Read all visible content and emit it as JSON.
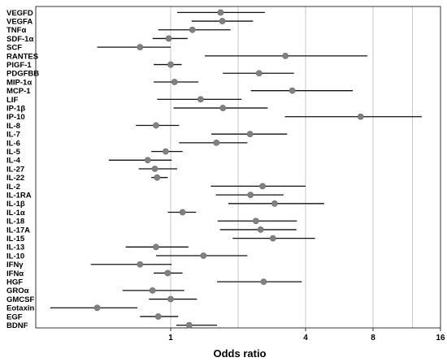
{
  "chart_data": {
    "type": "forest",
    "xlabel": "Odds ratio",
    "xscale": "log2",
    "xlim": [
      0.25,
      16
    ],
    "xticks": [
      1,
      4,
      8,
      16
    ],
    "xtick_labels": [
      "1",
      "4",
      "8",
      "16"
    ],
    "grid_x": [
      1,
      2,
      4,
      8,
      12,
      16
    ],
    "grid": true,
    "marker_color": "#808080",
    "rows": [
      {
        "label": "VEGFD",
        "or": 1.67,
        "lo": 1.07,
        "hi": 2.63
      },
      {
        "label": "VEGFA",
        "or": 1.7,
        "lo": 1.24,
        "hi": 2.33
      },
      {
        "label": "TNFα",
        "or": 1.25,
        "lo": 0.88,
        "hi": 1.85
      },
      {
        "label": "SDF-1α",
        "or": 0.98,
        "lo": 0.83,
        "hi": 1.19
      },
      {
        "label": "SCF",
        "or": 0.73,
        "lo": 0.47,
        "hi": 1.0
      },
      {
        "label": "RANTES",
        "or": 3.25,
        "lo": 1.42,
        "hi": 7.55
      },
      {
        "label": "PlGF-1",
        "or": 1.0,
        "lo": 0.84,
        "hi": 1.12
      },
      {
        "label": "PDGFBB",
        "or": 2.48,
        "lo": 1.71,
        "hi": 3.55
      },
      {
        "label": "MIP-1α",
        "or": 1.04,
        "lo": 0.84,
        "hi": 1.33
      },
      {
        "label": "MCP-1",
        "or": 3.49,
        "lo": 2.28,
        "hi": 6.5
      },
      {
        "label": "LIF",
        "or": 1.36,
        "lo": 0.87,
        "hi": 2.07
      },
      {
        "label": "IP-1β",
        "or": 1.71,
        "lo": 1.03,
        "hi": 2.71
      },
      {
        "label": "IP-10",
        "or": 7.04,
        "lo": 3.23,
        "hi": 13.2
      },
      {
        "label": "IL-8",
        "or": 0.86,
        "lo": 0.7,
        "hi": 1.09
      },
      {
        "label": "IL-7",
        "or": 2.26,
        "lo": 1.52,
        "hi": 3.31
      },
      {
        "label": "IL-6",
        "or": 1.6,
        "lo": 1.09,
        "hi": 2.2
      },
      {
        "label": "IL-5",
        "or": 0.95,
        "lo": 0.82,
        "hi": 1.13
      },
      {
        "label": "IL-4",
        "or": 0.79,
        "lo": 0.53,
        "hi": 1.01
      },
      {
        "label": "IL-27",
        "or": 0.85,
        "lo": 0.72,
        "hi": 1.07
      },
      {
        "label": "IL-22",
        "or": 0.87,
        "lo": 0.82,
        "hi": 0.97
      },
      {
        "label": "IL-2",
        "or": 2.57,
        "lo": 1.51,
        "hi": 4.0
      },
      {
        "label": "IL-1RA",
        "or": 2.27,
        "lo": 1.59,
        "hi": 3.19
      },
      {
        "label": "IL-1β",
        "or": 2.91,
        "lo": 1.81,
        "hi": 4.84
      },
      {
        "label": "IL-1α",
        "or": 1.13,
        "lo": 0.97,
        "hi": 1.3
      },
      {
        "label": "IL-18",
        "or": 2.4,
        "lo": 1.62,
        "hi": 3.66
      },
      {
        "label": "IL-17A",
        "or": 2.52,
        "lo": 1.66,
        "hi": 3.64
      },
      {
        "label": "IL-15",
        "or": 2.86,
        "lo": 1.89,
        "hi": 4.41
      },
      {
        "label": "IL-13",
        "or": 0.86,
        "lo": 0.63,
        "hi": 1.2
      },
      {
        "label": "IL-10",
        "or": 1.4,
        "lo": 0.86,
        "hi": 2.2
      },
      {
        "label": "IFNγ",
        "or": 0.73,
        "lo": 0.44,
        "hi": 1.01
      },
      {
        "label": "IFNα",
        "or": 0.97,
        "lo": 0.84,
        "hi": 1.13
      },
      {
        "label": "HGF",
        "or": 2.6,
        "lo": 1.61,
        "hi": 3.85
      },
      {
        "label": "GROα",
        "or": 0.83,
        "lo": 0.61,
        "hi": 1.15
      },
      {
        "label": "GMCSF",
        "or": 1.0,
        "lo": 0.8,
        "hi": 1.31
      },
      {
        "label": "Eotaxin",
        "or": 0.47,
        "lo": 0.29,
        "hi": 0.71
      },
      {
        "label": "EGF",
        "or": 0.88,
        "lo": 0.73,
        "hi": 1.08
      },
      {
        "label": "BDNF",
        "or": 1.21,
        "lo": 1.06,
        "hi": 1.61
      }
    ]
  }
}
